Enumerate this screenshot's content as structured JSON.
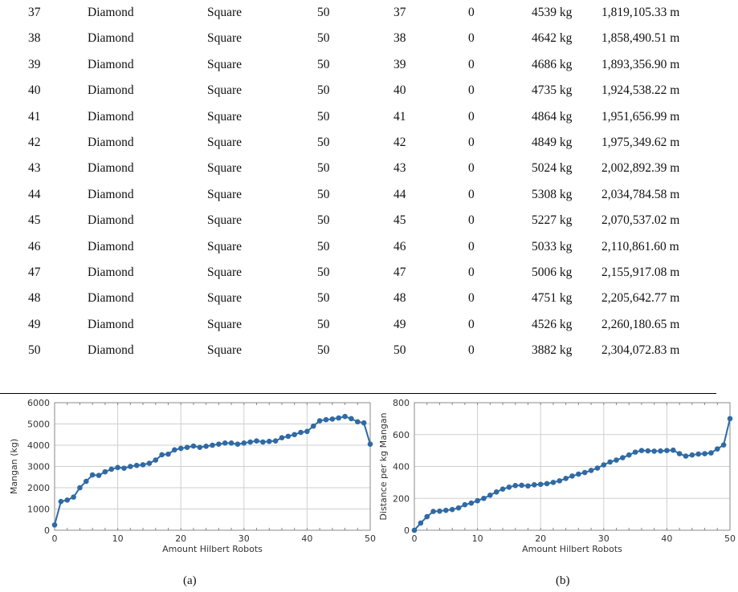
{
  "table": {
    "rows": [
      [
        "37",
        "Diamond",
        "Square",
        "50",
        "37",
        "0",
        "4539 kg",
        "1,819,105.33 m"
      ],
      [
        "38",
        "Diamond",
        "Square",
        "50",
        "38",
        "0",
        "4642 kg",
        "1,858,490.51 m"
      ],
      [
        "39",
        "Diamond",
        "Square",
        "50",
        "39",
        "0",
        "4686 kg",
        "1,893,356.90 m"
      ],
      [
        "40",
        "Diamond",
        "Square",
        "50",
        "40",
        "0",
        "4735 kg",
        "1,924,538.22 m"
      ],
      [
        "41",
        "Diamond",
        "Square",
        "50",
        "41",
        "0",
        "4864 kg",
        "1,951,656.99 m"
      ],
      [
        "42",
        "Diamond",
        "Square",
        "50",
        "42",
        "0",
        "4849 kg",
        "1,975,349.62 m"
      ],
      [
        "43",
        "Diamond",
        "Square",
        "50",
        "43",
        "0",
        "5024 kg",
        "2,002,892.39 m"
      ],
      [
        "44",
        "Diamond",
        "Square",
        "50",
        "44",
        "0",
        "5308 kg",
        "2,034,784.58 m"
      ],
      [
        "45",
        "Diamond",
        "Square",
        "50",
        "45",
        "0",
        "5227 kg",
        "2,070,537.02 m"
      ],
      [
        "46",
        "Diamond",
        "Square",
        "50",
        "46",
        "0",
        "5033 kg",
        "2,110,861.60 m"
      ],
      [
        "47",
        "Diamond",
        "Square",
        "50",
        "47",
        "0",
        "5006 kg",
        "2,155,917.08 m"
      ],
      [
        "48",
        "Diamond",
        "Square",
        "50",
        "48",
        "0",
        "4751 kg",
        "2,205,642.77 m"
      ],
      [
        "49",
        "Diamond",
        "Square",
        "50",
        "49",
        "0",
        "4526 kg",
        "2,260,180.65 m"
      ],
      [
        "50",
        "Diamond",
        "Square",
        "50",
        "50",
        "0",
        "3882 kg",
        "2,304,072.83 m"
      ]
    ]
  },
  "chart_data": [
    {
      "type": "line",
      "caption": "(a)",
      "xlabel": "Amount Hilbert Robots",
      "ylabel": "Mangan (kg)",
      "xlim": [
        0,
        50
      ],
      "ylim": [
        0,
        6000
      ],
      "xticks": [
        0,
        10,
        20,
        30,
        40,
        50
      ],
      "yticks": [
        0,
        1000,
        2000,
        3000,
        4000,
        5000,
        6000
      ],
      "grid": true,
      "color": "#2f6aa5",
      "x": [
        0,
        1,
        2,
        3,
        4,
        5,
        6,
        7,
        8,
        9,
        10,
        11,
        12,
        13,
        14,
        15,
        16,
        17,
        18,
        19,
        20,
        21,
        22,
        23,
        24,
        25,
        26,
        27,
        28,
        29,
        30,
        31,
        32,
        33,
        34,
        35,
        36,
        37,
        38,
        39,
        40,
        41,
        42,
        43,
        44,
        45,
        46,
        47,
        48,
        49,
        50
      ],
      "y": [
        250,
        1350,
        1420,
        1560,
        2000,
        2300,
        2600,
        2580,
        2750,
        2870,
        2950,
        2920,
        3000,
        3050,
        3080,
        3150,
        3300,
        3550,
        3580,
        3780,
        3850,
        3900,
        3960,
        3900,
        3950,
        4000,
        4050,
        4100,
        4100,
        4050,
        4100,
        4150,
        4200,
        4150,
        4180,
        4200,
        4350,
        4420,
        4500,
        4600,
        4650,
        4900,
        5150,
        5200,
        5230,
        5280,
        5350,
        5250,
        5100,
        5050,
        4050
      ]
    },
    {
      "type": "line",
      "caption": "(b)",
      "xlabel": "Amount Hilbert Robots",
      "ylabel": "Distance per kg Mangan",
      "xlim": [
        0,
        50
      ],
      "ylim": [
        0,
        800
      ],
      "xticks": [
        0,
        10,
        20,
        30,
        40,
        50
      ],
      "yticks": [
        0,
        200,
        400,
        600,
        800
      ],
      "grid": true,
      "color": "#2f6aa5",
      "x": [
        0,
        1,
        2,
        3,
        4,
        5,
        6,
        7,
        8,
        9,
        10,
        11,
        12,
        13,
        14,
        15,
        16,
        17,
        18,
        19,
        20,
        21,
        22,
        23,
        24,
        25,
        26,
        27,
        28,
        29,
        30,
        31,
        32,
        33,
        34,
        35,
        36,
        37,
        38,
        39,
        40,
        41,
        42,
        43,
        44,
        45,
        46,
        47,
        48,
        49,
        50
      ],
      "y": [
        0,
        45,
        85,
        118,
        120,
        125,
        130,
        140,
        160,
        170,
        185,
        200,
        220,
        240,
        258,
        270,
        280,
        282,
        278,
        285,
        288,
        292,
        300,
        310,
        325,
        340,
        352,
        362,
        375,
        390,
        410,
        428,
        440,
        455,
        472,
        490,
        500,
        498,
        496,
        497,
        500,
        502,
        480,
        465,
        472,
        478,
        480,
        485,
        510,
        535,
        700
      ]
    }
  ]
}
